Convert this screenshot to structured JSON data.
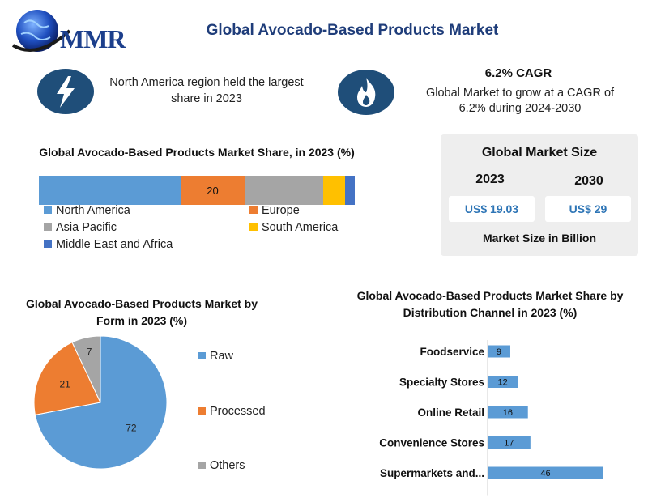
{
  "header": {
    "logo_text": "MMR",
    "title": "Global Avocado-Based Products Market"
  },
  "icons": {
    "left": "lightning-icon",
    "right": "flame-icon"
  },
  "highlights": {
    "region_text": "North America region held the largest share in 2023",
    "cagr_title": "6.2% CAGR",
    "cagr_text": "Global Market to grow at a CAGR of 6.2% during 2024-2030"
  },
  "market_size": {
    "title": "Global Market Size",
    "year1": "2023",
    "year2": "2030",
    "value1": "US$ 19.03",
    "value2": "US$ 29",
    "unit_text": "Market Size in Billion"
  },
  "colors": {
    "blue": "#5b9bd5",
    "orange": "#ed7d31",
    "gray": "#a5a5a5",
    "yellow": "#ffc000",
    "dark_blue": "#4472c4",
    "title_blue": "#1f3d7a"
  },
  "chart_data": [
    {
      "type": "bar",
      "orientation": "horizontal-stacked",
      "title": "Global Avocado-Based Products Market Share, in 2023 (%)",
      "series": [
        {
          "name": "North America",
          "value": 45,
          "color": "#5b9bd5",
          "label": ""
        },
        {
          "name": "Europe",
          "value": 20,
          "color": "#ed7d31",
          "label": "20"
        },
        {
          "name": "Asia Pacific",
          "value": 25,
          "color": "#a5a5a5",
          "label": ""
        },
        {
          "name": "South America",
          "value": 7,
          "color": "#ffc000",
          "label": ""
        },
        {
          "name": "Middle East and Africa",
          "value": 3,
          "color": "#4472c4",
          "label": ""
        }
      ],
      "legend": "bottom"
    },
    {
      "type": "pie",
      "title": "Global Avocado-Based Products Market by Form in 2023 (%)",
      "slices": [
        {
          "name": "Raw",
          "value": 72,
          "color": "#5b9bd5"
        },
        {
          "name": "Processed",
          "value": 21,
          "color": "#ed7d31"
        },
        {
          "name": "Others",
          "value": 7,
          "color": "#a5a5a5"
        }
      ],
      "legend": "right"
    },
    {
      "type": "bar",
      "orientation": "horizontal",
      "title": "Global Avocado-Based Products Market Share by Distribution Channel in 2023 (%)",
      "categories": [
        "Foodservice",
        "Specialty Stores",
        "Online Retail",
        "Convenience Stores",
        "Supermarkets and..."
      ],
      "values": [
        9,
        12,
        16,
        17,
        46
      ],
      "color": "#5b9bd5",
      "xlim": [
        0,
        46
      ]
    }
  ]
}
